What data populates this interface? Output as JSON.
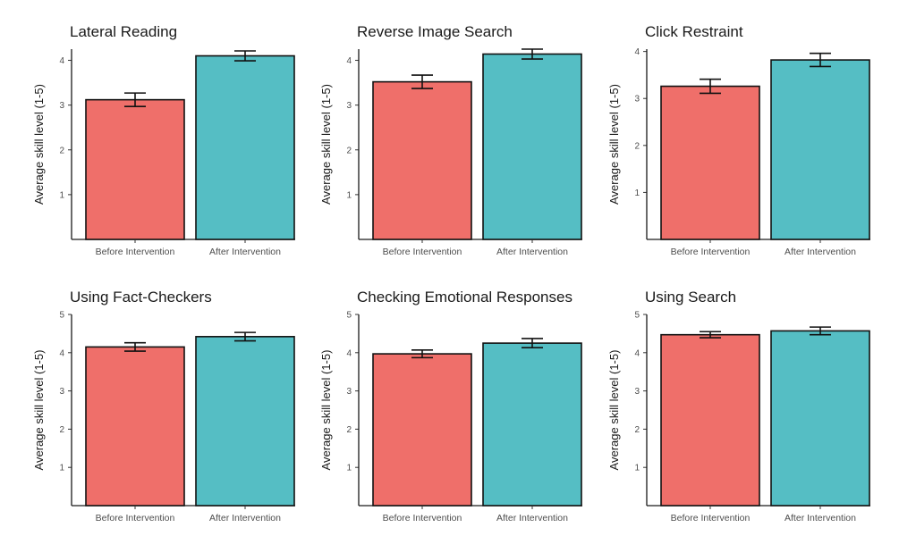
{
  "colors": {
    "before": "#ef6f6a",
    "after": "#55bec4"
  },
  "chart_data": [
    {
      "type": "bar",
      "title": "Lateral Reading",
      "ylabel": "Average skill level (1-5)",
      "categories": [
        "Before Intervention",
        "After Intervention"
      ],
      "values": [
        3.12,
        4.1
      ],
      "errors": [
        0.15,
        0.11
      ],
      "ylim": [
        0,
        4.25
      ],
      "yticks": [
        1,
        2,
        3,
        4
      ],
      "grid": false
    },
    {
      "type": "bar",
      "title": "Reverse Image Search",
      "ylabel": "Average skill level (1-5)",
      "categories": [
        "Before Intervention",
        "After Intervention"
      ],
      "values": [
        3.52,
        4.14
      ],
      "errors": [
        0.15,
        0.11
      ],
      "ylim": [
        0,
        4.25
      ],
      "yticks": [
        1,
        2,
        3,
        4
      ],
      "grid": false
    },
    {
      "type": "bar",
      "title": "Click Restraint",
      "ylabel": "Average skill level (1-5)",
      "categories": [
        "Before Intervention",
        "After Intervention"
      ],
      "values": [
        3.26,
        3.82
      ],
      "errors": [
        0.15,
        0.14
      ],
      "ylim": [
        0,
        4.05
      ],
      "yticks": [
        1,
        2,
        3,
        4
      ],
      "grid": false
    },
    {
      "type": "bar",
      "title": "Using Fact-Checkers",
      "ylabel": "Average skill level (1-5)",
      "categories": [
        "Before Intervention",
        "After Intervention"
      ],
      "values": [
        4.15,
        4.42
      ],
      "errors": [
        0.11,
        0.11
      ],
      "ylim": [
        0,
        5.0
      ],
      "yticks": [
        1,
        2,
        3,
        4,
        5
      ],
      "grid": false
    },
    {
      "type": "bar",
      "title": "Checking Emotional Responses",
      "ylabel": "Average skill level (1-5)",
      "categories": [
        "Before Intervention",
        "After Intervention"
      ],
      "values": [
        3.97,
        4.25
      ],
      "errors": [
        0.1,
        0.12
      ],
      "ylim": [
        0,
        5.0
      ],
      "yticks": [
        1,
        2,
        3,
        4,
        5
      ],
      "grid": false
    },
    {
      "type": "bar",
      "title": "Using Search",
      "ylabel": "Average skill level (1-5)",
      "categories": [
        "Before Intervention",
        "After Intervention"
      ],
      "values": [
        4.47,
        4.57
      ],
      "errors": [
        0.08,
        0.1
      ],
      "ylim": [
        0,
        5.0
      ],
      "yticks": [
        1,
        2,
        3,
        4,
        5
      ],
      "grid": false
    }
  ]
}
